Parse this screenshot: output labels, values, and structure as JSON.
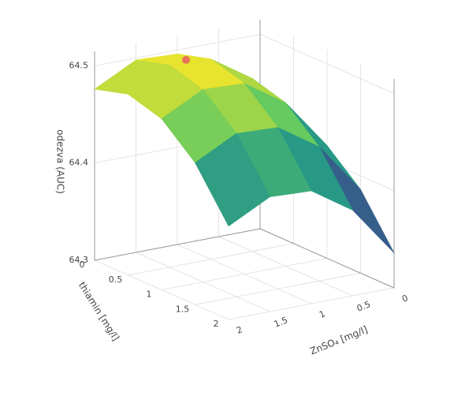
{
  "chart_data": {
    "type": "surface",
    "x_label": "ZnSO₄ [mg/l]",
    "y_label": "thiamin [mg/l]",
    "z_label": "odezva (AUC)",
    "x": [
      0,
      0.5,
      1,
      1.5,
      2
    ],
    "y": [
      0,
      0.5,
      1,
      1.5,
      2
    ],
    "z": [
      [
        64.416,
        64.468,
        64.496,
        64.498,
        64.476
      ],
      [
        64.426,
        64.478,
        64.506,
        64.508,
        64.486
      ],
      [
        64.416,
        64.468,
        64.496,
        64.498,
        64.476
      ],
      [
        64.386,
        64.438,
        64.466,
        64.468,
        64.446
      ],
      [
        64.336,
        64.388,
        64.416,
        64.418,
        64.396
      ]
    ],
    "xlim": [
      0,
      2
    ],
    "ylim": [
      0,
      2
    ],
    "zlim": [
      64.3,
      64.515
    ],
    "xticks": [
      0,
      0.5,
      1,
      1.5,
      2
    ],
    "yticks": [
      0,
      0.5,
      1,
      1.5,
      2
    ],
    "zticks": [
      64.3,
      64.4,
      64.5
    ],
    "colorscale": [
      "#440154",
      "#3b528b",
      "#21918c",
      "#5ec962",
      "#fde725"
    ],
    "marker": {
      "x": 1.3,
      "y": 0.5,
      "z": 64.51,
      "color": "#e8735a"
    },
    "grid": true
  }
}
